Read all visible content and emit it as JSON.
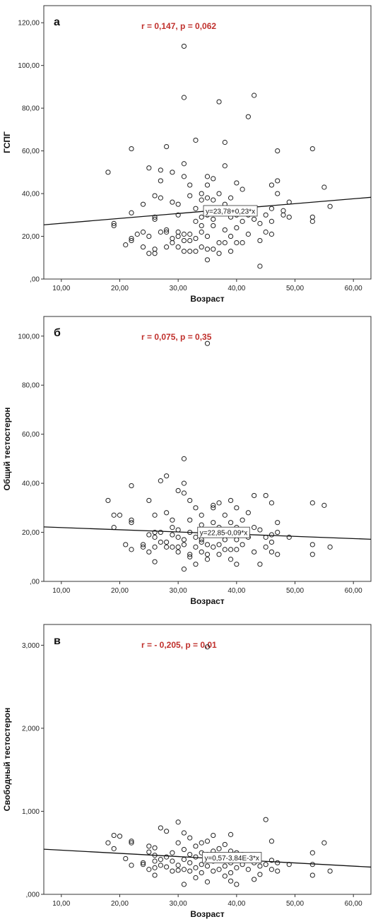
{
  "chart_data": [
    {
      "type": "scatter",
      "panel_label": "а",
      "stat_text": "r = 0,147, p = 0,062",
      "xlabel": "Возраст",
      "ylabel": "ГСПГ",
      "xlim": [
        7,
        63
      ],
      "ylim": [
        0,
        128
      ],
      "xticks": [
        10,
        20,
        30,
        40,
        50,
        60
      ],
      "xtick_labels": [
        "10,00",
        "20,00",
        "30,00",
        "40,00",
        "50,00",
        "60,00"
      ],
      "yticks": [
        0,
        20,
        40,
        60,
        80,
        100,
        120
      ],
      "ytick_labels": [
        ",00",
        "20,00",
        "40,00",
        "60,00",
        "80,00",
        "100,00",
        "120,00"
      ],
      "regression": {
        "intercept": 23.78,
        "slope": 0.23,
        "label": "y=23,78+0,23*x",
        "label_x": 34.7
      },
      "grid": false,
      "points": [
        [
          18,
          50
        ],
        [
          19,
          26
        ],
        [
          19,
          25
        ],
        [
          21,
          16
        ],
        [
          22,
          19
        ],
        [
          22,
          18
        ],
        [
          22,
          31
        ],
        [
          22,
          61
        ],
        [
          23,
          21
        ],
        [
          24,
          35
        ],
        [
          24,
          22
        ],
        [
          24,
          15
        ],
        [
          25,
          52
        ],
        [
          25,
          12
        ],
        [
          25,
          20
        ],
        [
          26,
          14
        ],
        [
          26,
          12
        ],
        [
          26,
          28
        ],
        [
          26,
          39
        ],
        [
          26,
          29
        ],
        [
          27,
          22
        ],
        [
          27,
          46
        ],
        [
          27,
          51
        ],
        [
          27,
          38
        ],
        [
          28,
          22
        ],
        [
          28,
          62
        ],
        [
          28,
          23
        ],
        [
          28,
          15
        ],
        [
          29,
          50
        ],
        [
          29,
          19
        ],
        [
          29,
          17
        ],
        [
          29,
          36
        ],
        [
          30,
          30
        ],
        [
          30,
          35
        ],
        [
          30,
          22
        ],
        [
          30,
          15
        ],
        [
          30,
          20
        ],
        [
          31,
          13
        ],
        [
          31,
          18
        ],
        [
          31,
          21
        ],
        [
          31,
          48
        ],
        [
          31,
          54
        ],
        [
          31,
          85
        ],
        [
          31,
          109
        ],
        [
          32,
          44
        ],
        [
          32,
          13
        ],
        [
          32,
          21
        ],
        [
          32,
          18
        ],
        [
          32,
          39
        ],
        [
          33,
          13
        ],
        [
          33,
          19
        ],
        [
          33,
          27
        ],
        [
          33,
          65
        ],
        [
          33,
          33
        ],
        [
          34,
          22
        ],
        [
          34,
          15
        ],
        [
          34,
          29
        ],
        [
          34,
          40
        ],
        [
          34,
          37
        ],
        [
          34,
          25
        ],
        [
          35,
          9
        ],
        [
          35,
          14
        ],
        [
          35,
          30
        ],
        [
          35,
          48
        ],
        [
          35,
          20
        ],
        [
          35,
          44
        ],
        [
          35,
          38
        ],
        [
          36,
          25
        ],
        [
          36,
          14
        ],
        [
          36,
          47
        ],
        [
          36,
          33
        ],
        [
          36,
          37
        ],
        [
          36,
          28
        ],
        [
          37,
          83
        ],
        [
          37,
          12
        ],
        [
          37,
          17
        ],
        [
          37,
          31
        ],
        [
          37,
          40
        ],
        [
          38,
          53
        ],
        [
          38,
          64
        ],
        [
          38,
          23
        ],
        [
          38,
          17
        ],
        [
          38,
          35
        ],
        [
          39,
          20
        ],
        [
          39,
          29
        ],
        [
          39,
          38
        ],
        [
          39,
          13
        ],
        [
          40,
          45
        ],
        [
          40,
          30
        ],
        [
          40,
          17
        ],
        [
          40,
          24
        ],
        [
          41,
          17
        ],
        [
          41,
          33
        ],
        [
          41,
          42
        ],
        [
          41,
          27
        ],
        [
          42,
          76
        ],
        [
          42,
          30
        ],
        [
          42,
          21
        ],
        [
          43,
          86
        ],
        [
          43,
          33
        ],
        [
          43,
          28
        ],
        [
          44,
          6
        ],
        [
          44,
          18
        ],
        [
          44,
          26
        ],
        [
          45,
          30
        ],
        [
          45,
          22
        ],
        [
          46,
          21
        ],
        [
          46,
          44
        ],
        [
          46,
          33
        ],
        [
          46,
          27
        ],
        [
          47,
          60
        ],
        [
          47,
          46
        ],
        [
          47,
          40
        ],
        [
          48,
          30
        ],
        [
          48,
          32
        ],
        [
          49,
          29
        ],
        [
          49,
          36
        ],
        [
          53,
          61
        ],
        [
          53,
          27
        ],
        [
          53,
          29
        ],
        [
          55,
          43
        ],
        [
          56,
          34
        ]
      ]
    },
    {
      "type": "scatter",
      "panel_label": "б",
      "stat_text": "r = 0,075, p = 0,35",
      "xlabel": "Возраст",
      "ylabel": "Общий тестостерон",
      "xlim": [
        7,
        63
      ],
      "ylim": [
        0,
        108
      ],
      "xticks": [
        10,
        20,
        30,
        40,
        50,
        60
      ],
      "xtick_labels": [
        "10,00",
        "20,00",
        "30,00",
        "40,00",
        "50,00",
        "60,00"
      ],
      "yticks": [
        0,
        20,
        40,
        60,
        80,
        100
      ],
      "ytick_labels": [
        ",00",
        "20,00",
        "40,00",
        "60,00",
        "80,00",
        "100,00"
      ],
      "regression": {
        "intercept": 22.85,
        "slope": -0.09,
        "label": "y=22,85-0,09*x",
        "label_x": 33.7
      },
      "grid": false,
      "points": [
        [
          18,
          33
        ],
        [
          19,
          27
        ],
        [
          19,
          22
        ],
        [
          20,
          27
        ],
        [
          21,
          15
        ],
        [
          22,
          39
        ],
        [
          22,
          25
        ],
        [
          22,
          24
        ],
        [
          22,
          13
        ],
        [
          24,
          15
        ],
        [
          24,
          14
        ],
        [
          25,
          19
        ],
        [
          25,
          12
        ],
        [
          25,
          33
        ],
        [
          26,
          27
        ],
        [
          26,
          18
        ],
        [
          26,
          14
        ],
        [
          26,
          8
        ],
        [
          26,
          20
        ],
        [
          27,
          20
        ],
        [
          27,
          41
        ],
        [
          27,
          16
        ],
        [
          28,
          43
        ],
        [
          28,
          28
        ],
        [
          28,
          16
        ],
        [
          28,
          14
        ],
        [
          29,
          25
        ],
        [
          29,
          19
        ],
        [
          29,
          14
        ],
        [
          29,
          22
        ],
        [
          30,
          37
        ],
        [
          30,
          14
        ],
        [
          30,
          12
        ],
        [
          30,
          21
        ],
        [
          30,
          18
        ],
        [
          31,
          50
        ],
        [
          31,
          40
        ],
        [
          31,
          36
        ],
        [
          31,
          5
        ],
        [
          31,
          17
        ],
        [
          31,
          15
        ],
        [
          32,
          33
        ],
        [
          32,
          25
        ],
        [
          32,
          11
        ],
        [
          32,
          20
        ],
        [
          32,
          10
        ],
        [
          33,
          30
        ],
        [
          33,
          18
        ],
        [
          33,
          14
        ],
        [
          33,
          7
        ],
        [
          34,
          27
        ],
        [
          34,
          23
        ],
        [
          34,
          21
        ],
        [
          34,
          17
        ],
        [
          34,
          16
        ],
        [
          34,
          12
        ],
        [
          35,
          97
        ],
        [
          35,
          20
        ],
        [
          35,
          15
        ],
        [
          35,
          11
        ],
        [
          35,
          9
        ],
        [
          36,
          31
        ],
        [
          36,
          30
        ],
        [
          36,
          24
        ],
        [
          36,
          19
        ],
        [
          36,
          14
        ],
        [
          37,
          32
        ],
        [
          37,
          22
        ],
        [
          37,
          15
        ],
        [
          37,
          11
        ],
        [
          38,
          27
        ],
        [
          38,
          19
        ],
        [
          38,
          17
        ],
        [
          38,
          13
        ],
        [
          39,
          24
        ],
        [
          39,
          33
        ],
        [
          39,
          20
        ],
        [
          39,
          13
        ],
        [
          39,
          9
        ],
        [
          40,
          30
        ],
        [
          40,
          22
        ],
        [
          40,
          17
        ],
        [
          40,
          13
        ],
        [
          40,
          7
        ],
        [
          41,
          25
        ],
        [
          41,
          20
        ],
        [
          41,
          15
        ],
        [
          42,
          28
        ],
        [
          42,
          18
        ],
        [
          43,
          35
        ],
        [
          43,
          22
        ],
        [
          43,
          12
        ],
        [
          44,
          21
        ],
        [
          44,
          7
        ],
        [
          45,
          35
        ],
        [
          45,
          18
        ],
        [
          45,
          14
        ],
        [
          46,
          32
        ],
        [
          46,
          16
        ],
        [
          46,
          12
        ],
        [
          46,
          19
        ],
        [
          47,
          24
        ],
        [
          47,
          20
        ],
        [
          47,
          11
        ],
        [
          49,
          18
        ],
        [
          53,
          32
        ],
        [
          53,
          15
        ],
        [
          53,
          11
        ],
        [
          55,
          31
        ],
        [
          56,
          14
        ]
      ]
    },
    {
      "type": "scatter",
      "panel_label": "в",
      "stat_text": "r = - 0,205, p = 0,01",
      "xlabel": "Возраст",
      "ylabel": "Свободный тестостерон",
      "xlim": [
        7,
        63
      ],
      "ylim": [
        0,
        3.25
      ],
      "xticks": [
        10,
        20,
        30,
        40,
        50,
        60
      ],
      "xtick_labels": [
        "10,00",
        "20,00",
        "30,00",
        "40,00",
        "50,00",
        "60,00"
      ],
      "yticks": [
        0,
        1,
        2,
        3
      ],
      "ytick_labels": [
        ",000",
        "1,000",
        "2,000",
        "3,000"
      ],
      "regression": {
        "intercept": 0.57,
        "slope": -0.00384,
        "label": "y=0,57-3,84E-3*x",
        "label_x": 34.5
      },
      "grid": false,
      "points": [
        [
          18,
          0.62
        ],
        [
          19,
          0.71
        ],
        [
          19,
          0.55
        ],
        [
          20,
          0.7
        ],
        [
          21,
          0.43
        ],
        [
          22,
          0.64
        ],
        [
          22,
          0.35
        ],
        [
          22,
          0.62
        ],
        [
          24,
          0.38
        ],
        [
          24,
          0.36
        ],
        [
          25,
          0.51
        ],
        [
          25,
          0.58
        ],
        [
          25,
          0.3
        ],
        [
          26,
          0.56
        ],
        [
          26,
          0.47
        ],
        [
          26,
          0.4
        ],
        [
          26,
          0.32
        ],
        [
          26,
          0.23
        ],
        [
          27,
          0.8
        ],
        [
          27,
          0.42
        ],
        [
          27,
          0.35
        ],
        [
          28,
          0.76
        ],
        [
          28,
          0.45
        ],
        [
          28,
          0.33
        ],
        [
          29,
          0.5
        ],
        [
          29,
          0.4
        ],
        [
          29,
          0.28
        ],
        [
          30,
          0.87
        ],
        [
          30,
          0.62
        ],
        [
          30,
          0.35
        ],
        [
          30,
          0.29
        ],
        [
          31,
          0.74
        ],
        [
          31,
          0.54
        ],
        [
          31,
          0.42
        ],
        [
          31,
          0.3
        ],
        [
          31,
          0.12
        ],
        [
          32,
          0.68
        ],
        [
          32,
          0.48
        ],
        [
          32,
          0.38
        ],
        [
          32,
          0.28
        ],
        [
          33,
          0.58
        ],
        [
          33,
          0.45
        ],
        [
          33,
          0.32
        ],
        [
          33,
          0.2
        ],
        [
          34,
          0.62
        ],
        [
          34,
          0.5
        ],
        [
          34,
          0.36
        ],
        [
          34,
          0.26
        ],
        [
          35,
          2.98
        ],
        [
          35,
          0.64
        ],
        [
          35,
          0.48
        ],
        [
          35,
          0.34
        ],
        [
          35,
          0.15
        ],
        [
          36,
          0.71
        ],
        [
          36,
          0.52
        ],
        [
          36,
          0.4
        ],
        [
          36,
          0.28
        ],
        [
          37,
          0.55
        ],
        [
          37,
          0.42
        ],
        [
          37,
          0.3
        ],
        [
          38,
          0.6
        ],
        [
          38,
          0.45
        ],
        [
          38,
          0.34
        ],
        [
          38,
          0.22
        ],
        [
          39,
          0.72
        ],
        [
          39,
          0.52
        ],
        [
          39,
          0.38
        ],
        [
          39,
          0.26
        ],
        [
          39,
          0.16
        ],
        [
          40,
          0.5
        ],
        [
          40,
          0.32
        ],
        [
          40,
          0.12
        ],
        [
          41,
          0.48
        ],
        [
          41,
          0.36
        ],
        [
          42,
          0.42
        ],
        [
          42,
          0.3
        ],
        [
          43,
          0.18
        ],
        [
          43,
          0.38
        ],
        [
          44,
          0.34
        ],
        [
          44,
          0.24
        ],
        [
          45,
          0.9
        ],
        [
          45,
          0.36
        ],
        [
          46,
          0.64
        ],
        [
          46,
          0.41
        ],
        [
          46,
          0.3
        ],
        [
          47,
          0.38
        ],
        [
          47,
          0.28
        ],
        [
          49,
          0.36
        ],
        [
          53,
          0.5
        ],
        [
          53,
          0.36
        ],
        [
          53,
          0.23
        ],
        [
          55,
          0.62
        ],
        [
          56,
          0.28
        ]
      ]
    }
  ]
}
